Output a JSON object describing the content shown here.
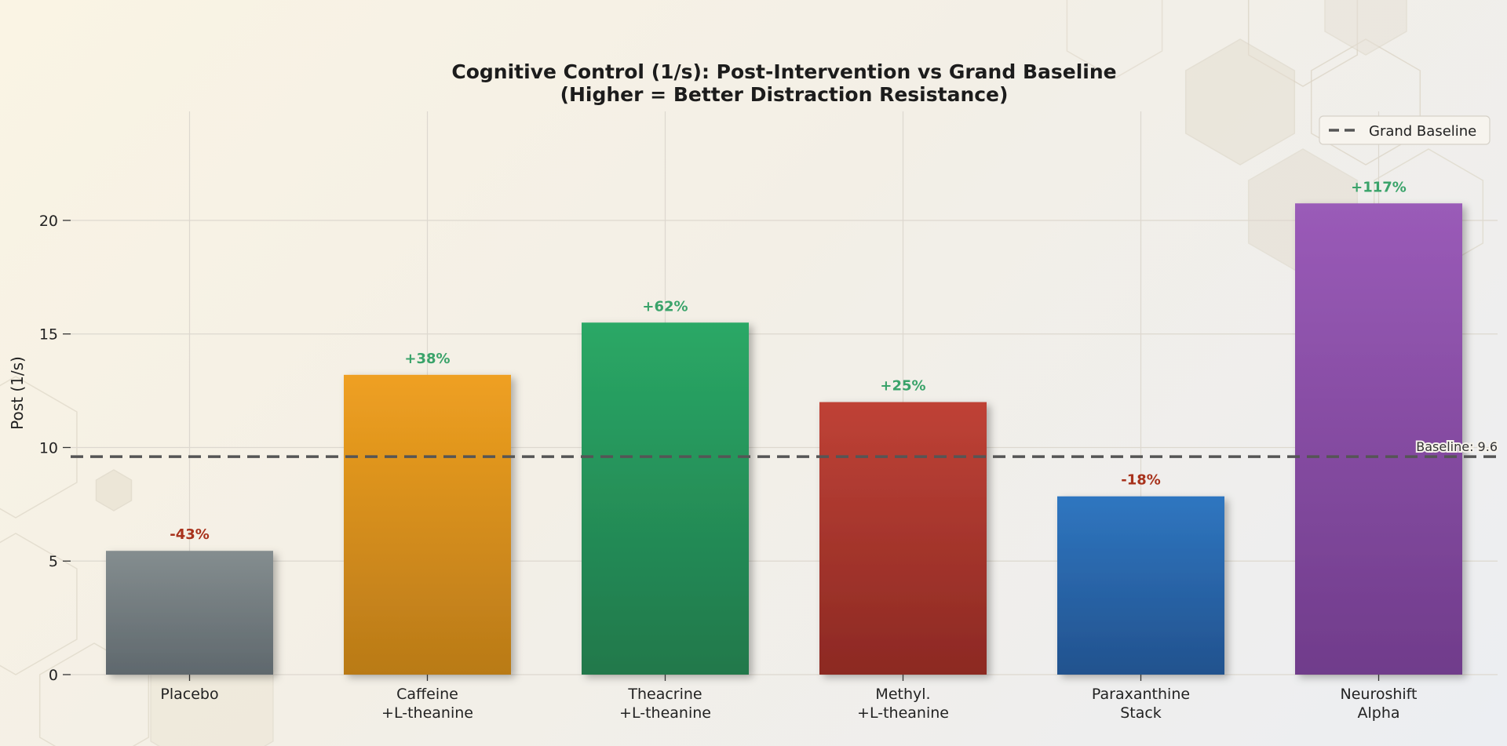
{
  "chart_data": {
    "type": "bar",
    "title": "Cognitive Control (1/s): Post-Intervention vs Grand Baseline",
    "subtitle": "(Higher = Better Distraction Resistance)",
    "xlabel": "",
    "ylabel": "Post (1/s)",
    "ylim": [
      0,
      24.8
    ],
    "yticks": [
      0,
      5,
      10,
      15,
      20
    ],
    "grid": true,
    "legend": {
      "position": "top-right",
      "entries": [
        "Grand Baseline"
      ]
    },
    "categories": [
      [
        "Placebo"
      ],
      [
        "Caffeine",
        "+L-theanine"
      ],
      [
        "Theacrine",
        "+L-theanine"
      ],
      [
        "Methyl.",
        "+L-theanine"
      ],
      [
        "Paraxanthine",
        "Stack"
      ],
      [
        "Neuroshift",
        "Alpha"
      ]
    ],
    "values": [
      5.45,
      13.2,
      15.5,
      12.0,
      7.85,
      20.75
    ],
    "change_labels": [
      "-43%",
      "+38%",
      "+62%",
      "+25%",
      "-18%",
      "+117%"
    ],
    "bar_colors": [
      [
        "#848d8f",
        "#5f686d"
      ],
      [
        "#efa021",
        "#b97a18"
      ],
      [
        "#2aa866",
        "#20784b"
      ],
      [
        "#bf4236",
        "#8c2923"
      ],
      [
        "#2f76c0",
        "#22528e"
      ],
      [
        "#9a5bb8",
        "#703c8b"
      ]
    ],
    "positive_color": "#3aa36a",
    "negative_color": "#a8321c",
    "baseline": {
      "value": 9.6,
      "label": "Baseline: 9.6",
      "name": "Grand Baseline",
      "style": "dashed",
      "color": "#555555"
    }
  }
}
